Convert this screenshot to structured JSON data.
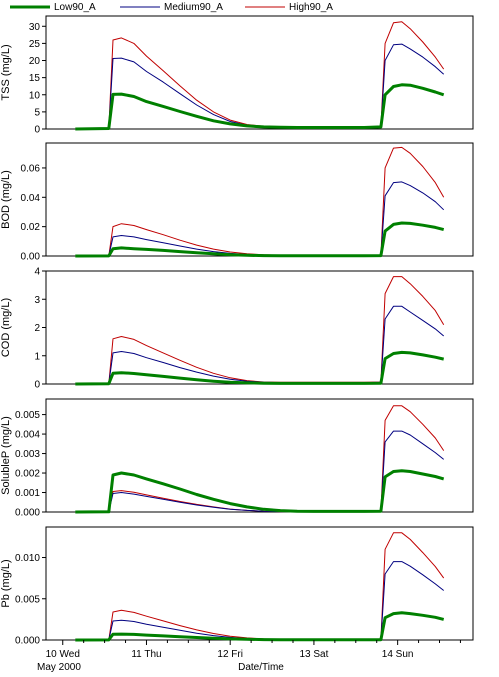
{
  "legend": [
    {
      "name": "Low90_A",
      "color": "#008000"
    },
    {
      "name": "Medium90_A",
      "color": "#000080"
    },
    {
      "name": "High90_A",
      "color": "#c00000"
    }
  ],
  "x_axis": {
    "day_labels": [
      "10 Wed",
      "11 Thu",
      "12 Fri",
      "13 Sat",
      "14 Sun"
    ],
    "sub_label": "May 2000",
    "title": "Date/Time"
  },
  "chart_data": [
    {
      "type": "line",
      "ylabel": "TSS (mg/L)",
      "ylim": [
        0,
        33
      ],
      "yticks": [
        0,
        5,
        10,
        15,
        20,
        25,
        30
      ],
      "yticklabels": [
        "0",
        "5",
        "10",
        "15",
        "20",
        "25",
        "30"
      ],
      "series": [
        {
          "name": "Low90_A",
          "values": [
            0,
            0.15,
            10.1,
            10.2,
            9.5,
            8.0,
            6.6,
            5.1,
            3.7,
            2.4,
            1.5,
            0.9,
            0.6,
            0.5,
            0.45,
            0.45,
            0.45,
            0.45,
            0.45,
            0.6,
            10.0,
            12.4,
            12.9,
            12.8,
            11.9,
            10.8,
            10.0
          ]
        },
        {
          "name": "Medium90_A",
          "values": [
            0,
            0.15,
            20.6,
            20.7,
            19.6,
            16.8,
            13.7,
            10.3,
            7.0,
            4.2,
            2.2,
            1.1,
            0.6,
            0.5,
            0.45,
            0.45,
            0.45,
            0.45,
            0.45,
            0.6,
            20.0,
            24.6,
            24.8,
            23.4,
            21.0,
            18.2,
            16.0
          ]
        },
        {
          "name": "High90_A",
          "values": [
            0,
            0.15,
            26.0,
            26.6,
            25.0,
            21.3,
            17.0,
            12.6,
            8.4,
            5.0,
            2.6,
            1.3,
            0.8,
            0.6,
            0.55,
            0.55,
            0.55,
            0.55,
            0.55,
            0.7,
            25.0,
            31.0,
            31.3,
            29.3,
            25.4,
            21.0,
            17.5
          ]
        }
      ]
    },
    {
      "type": "line",
      "ylabel": "BOD (mg/L)",
      "ylim": [
        0,
        0.077
      ],
      "yticks": [
        0,
        0.02,
        0.04,
        0.06
      ],
      "yticklabels": [
        "0.00",
        "0.02",
        "0.04",
        "0.06"
      ],
      "series": [
        {
          "name": "Low90_A",
          "values": [
            0,
            0.0001,
            0.005,
            0.0055,
            0.005,
            0.0045,
            0.0038,
            0.003,
            0.0022,
            0.0015,
            0.0009,
            0.0005,
            0.0003,
            0.0002,
            0.0002,
            0.0002,
            0.0002,
            0.0002,
            0.0002,
            0.0003,
            0.017,
            0.0215,
            0.0225,
            0.0222,
            0.021,
            0.0195,
            0.018
          ]
        },
        {
          "name": "Medium90_A",
          "values": [
            0,
            0.0001,
            0.013,
            0.014,
            0.013,
            0.0112,
            0.009,
            0.0068,
            0.0047,
            0.003,
            0.0018,
            0.001,
            0.0006,
            0.0004,
            0.0003,
            0.0003,
            0.0003,
            0.0003,
            0.0003,
            0.0004,
            0.041,
            0.05,
            0.0505,
            0.048,
            0.043,
            0.037,
            0.0315
          ]
        },
        {
          "name": "High90_A",
          "values": [
            0,
            0.0001,
            0.02,
            0.022,
            0.0208,
            0.018,
            0.0145,
            0.0108,
            0.0074,
            0.0047,
            0.0027,
            0.0015,
            0.0008,
            0.0005,
            0.0004,
            0.0004,
            0.0004,
            0.0004,
            0.0004,
            0.0005,
            0.06,
            0.0735,
            0.074,
            0.07,
            0.061,
            0.05,
            0.04
          ]
        }
      ]
    },
    {
      "type": "line",
      "ylabel": "COD (mg/L)",
      "ylim": [
        0,
        4
      ],
      "yticks": [
        0,
        1,
        2,
        3,
        4
      ],
      "yticklabels": [
        "0",
        "1",
        "2",
        "3",
        "4"
      ],
      "series": [
        {
          "name": "Low90_A",
          "values": [
            0,
            0.01,
            0.38,
            0.4,
            0.37,
            0.33,
            0.27,
            0.21,
            0.15,
            0.1,
            0.06,
            0.04,
            0.03,
            0.02,
            0.02,
            0.02,
            0.02,
            0.02,
            0.02,
            0.03,
            0.9,
            1.08,
            1.12,
            1.1,
            1.03,
            0.95,
            0.88
          ]
        },
        {
          "name": "Medium90_A",
          "values": [
            0,
            0.01,
            1.1,
            1.15,
            1.08,
            0.93,
            0.76,
            0.58,
            0.42,
            0.28,
            0.17,
            0.1,
            0.06,
            0.05,
            0.05,
            0.05,
            0.05,
            0.05,
            0.05,
            0.06,
            2.3,
            2.75,
            2.75,
            2.55,
            2.25,
            1.95,
            1.7
          ]
        },
        {
          "name": "High90_A",
          "values": [
            0,
            0.01,
            1.6,
            1.68,
            1.58,
            1.36,
            1.1,
            0.84,
            0.59,
            0.38,
            0.22,
            0.12,
            0.07,
            0.06,
            0.06,
            0.06,
            0.06,
            0.06,
            0.06,
            0.07,
            3.2,
            3.8,
            3.8,
            3.55,
            3.1,
            2.6,
            2.1
          ]
        }
      ]
    },
    {
      "type": "line",
      "ylabel": "SolubleP (mg/L)",
      "ylim": [
        0,
        0.0058
      ],
      "yticks": [
        0,
        0.001,
        0.002,
        0.003,
        0.004,
        0.005
      ],
      "yticklabels": [
        "0.000",
        "0.001",
        "0.002",
        "0.003",
        "0.004",
        "0.005"
      ],
      "series": [
        {
          "name": "Low90_A",
          "values": [
            0,
            1e-05,
            0.0019,
            0.002,
            0.0019,
            0.0017,
            0.00145,
            0.00118,
            0.0009,
            0.00065,
            0.00043,
            0.00026,
            0.00014,
            7e-05,
            4e-05,
            3e-05,
            3e-05,
            3e-05,
            3e-05,
            4e-05,
            0.0018,
            0.00208,
            0.00212,
            0.00208,
            0.00195,
            0.00182,
            0.0017
          ]
        },
        {
          "name": "Medium90_A",
          "values": [
            0,
            1e-05,
            0.00095,
            0.001,
            0.00092,
            0.0008,
            0.00065,
            0.0005,
            0.00036,
            0.00024,
            0.00014,
            8e-05,
            4e-05,
            2e-05,
            1e-05,
            1e-05,
            1e-05,
            1e-05,
            1e-05,
            2e-05,
            0.0036,
            0.00415,
            0.00415,
            0.00395,
            0.0035,
            0.00305,
            0.0027
          ]
        },
        {
          "name": "High90_A",
          "values": [
            0,
            1e-05,
            0.00105,
            0.0011,
            0.00101,
            0.00088,
            0.00071,
            0.00054,
            0.00039,
            0.00026,
            0.00015,
            8e-05,
            4e-05,
            2e-05,
            1e-05,
            1e-05,
            1e-05,
            1e-05,
            1e-05,
            2e-05,
            0.0047,
            0.00545,
            0.00545,
            0.00515,
            0.0045,
            0.0038,
            0.00315
          ]
        }
      ]
    },
    {
      "type": "line",
      "ylabel": "Pb (mg/L)",
      "ylim": [
        0,
        0.0137
      ],
      "yticks": [
        0,
        0.005,
        0.01
      ],
      "yticklabels": [
        "0.000",
        "0.005",
        "0.010"
      ],
      "series": [
        {
          "name": "Low90_A",
          "values": [
            0,
            1e-05,
            0.0007,
            0.00072,
            0.00068,
            0.0006,
            0.0005,
            0.0004,
            0.0003,
            0.00021,
            0.00013,
            8e-05,
            5e-05,
            3e-05,
            3e-05,
            3e-05,
            3e-05,
            3e-05,
            3e-05,
            4e-05,
            0.0027,
            0.0032,
            0.0033,
            0.0032,
            0.003,
            0.00275,
            0.0025
          ]
        },
        {
          "name": "Medium90_A",
          "values": [
            0,
            1e-05,
            0.0023,
            0.0024,
            0.00224,
            0.00192,
            0.00155,
            0.00117,
            0.00082,
            0.00053,
            0.00031,
            0.00017,
            9e-05,
            6e-05,
            5e-05,
            5e-05,
            5e-05,
            5e-05,
            5e-05,
            6e-05,
            0.008,
            0.0095,
            0.0095,
            0.00895,
            0.0079,
            0.0068,
            0.006
          ]
        },
        {
          "name": "High90_A",
          "values": [
            0,
            1e-05,
            0.0034,
            0.0036,
            0.00335,
            0.00288,
            0.00232,
            0.00175,
            0.00123,
            0.00079,
            0.00046,
            0.00025,
            0.00013,
            8e-05,
            6e-05,
            6e-05,
            6e-05,
            6e-05,
            6e-05,
            7e-05,
            0.011,
            0.013,
            0.013,
            0.0122,
            0.0106,
            0.0089,
            0.0075
          ]
        }
      ]
    }
  ],
  "x_day_values": [
    10.15,
    10.55,
    10.6,
    10.7,
    10.85,
    11.0,
    11.2,
    11.4,
    11.6,
    11.8,
    12.0,
    12.2,
    12.4,
    12.6,
    12.8,
    13.0,
    13.2,
    13.4,
    13.6,
    13.8,
    13.85,
    13.95,
    14.05,
    14.15,
    14.3,
    14.45,
    14.55
  ]
}
